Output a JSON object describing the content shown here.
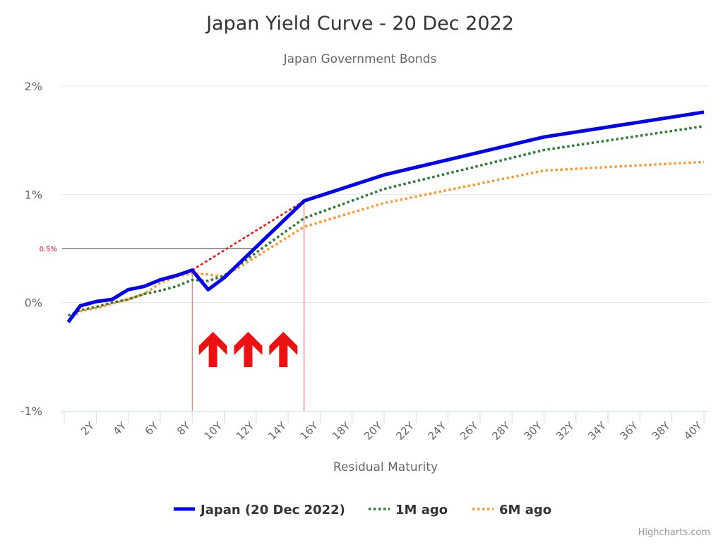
{
  "chart_data": {
    "type": "line",
    "title": "Japan Yield Curve - 20 Dec 2022",
    "subtitle": "Japan Government Bonds",
    "xlabel": "Residual Maturity",
    "ylabel": "",
    "xlim": [
      0,
      40
    ],
    "ylim": [
      -1,
      2
    ],
    "x_ticks": [
      "2Y",
      "4Y",
      "6Y",
      "8Y",
      "10Y",
      "12Y",
      "14Y",
      "16Y",
      "18Y",
      "20Y",
      "22Y",
      "24Y",
      "26Y",
      "28Y",
      "30Y",
      "32Y",
      "34Y",
      "36Y",
      "38Y",
      "40Y"
    ],
    "y_ticks": [
      "-1%",
      "0%",
      "1%",
      "2%"
    ],
    "grid": true,
    "legend_position": "bottom",
    "credits": "Highcharts.com",
    "series": [
      {
        "name": "Japan (20 Dec 2022)",
        "color": "#0000ee",
        "style": "solid",
        "x": [
          0.25,
          1,
          2,
          3,
          4,
          5,
          6,
          7,
          8,
          9,
          10,
          15,
          20,
          30,
          40
        ],
        "values": [
          -0.18,
          -0.03,
          0.01,
          0.03,
          0.12,
          0.15,
          0.21,
          0.25,
          0.3,
          0.12,
          0.23,
          0.94,
          1.18,
          1.53,
          1.76
        ]
      },
      {
        "name": "1M ago",
        "color": "#2e7d32",
        "style": "dotted",
        "x": [
          0.25,
          1,
          2,
          3,
          4,
          5,
          6,
          7,
          8,
          9,
          10,
          15,
          20,
          30,
          40
        ],
        "values": [
          -0.12,
          -0.07,
          -0.04,
          0.0,
          0.03,
          0.08,
          0.11,
          0.15,
          0.21,
          0.2,
          0.25,
          0.78,
          1.05,
          1.41,
          1.63
        ]
      },
      {
        "name": "6M ago",
        "color": "#ff9933",
        "style": "dotted",
        "x": [
          0.25,
          1,
          2,
          3,
          4,
          5,
          6,
          7,
          8,
          9,
          10,
          15,
          20,
          30,
          40
        ],
        "values": [
          -0.17,
          -0.08,
          -0.05,
          -0.01,
          0.03,
          0.08,
          0.18,
          0.24,
          0.27,
          0.26,
          0.24,
          0.7,
          0.92,
          1.22,
          1.3
        ]
      }
    ],
    "annotations": {
      "reference_line": {
        "value": 0.5,
        "label": "0.5%",
        "to_x": 12
      },
      "trend_line": {
        "from": [
          8,
          0.3
        ],
        "to": [
          15,
          0.94
        ],
        "color": "#ee1111"
      },
      "vertical_markers": [
        8,
        15
      ],
      "arrows_x": [
        9.3,
        11.5,
        13.7
      ]
    }
  }
}
